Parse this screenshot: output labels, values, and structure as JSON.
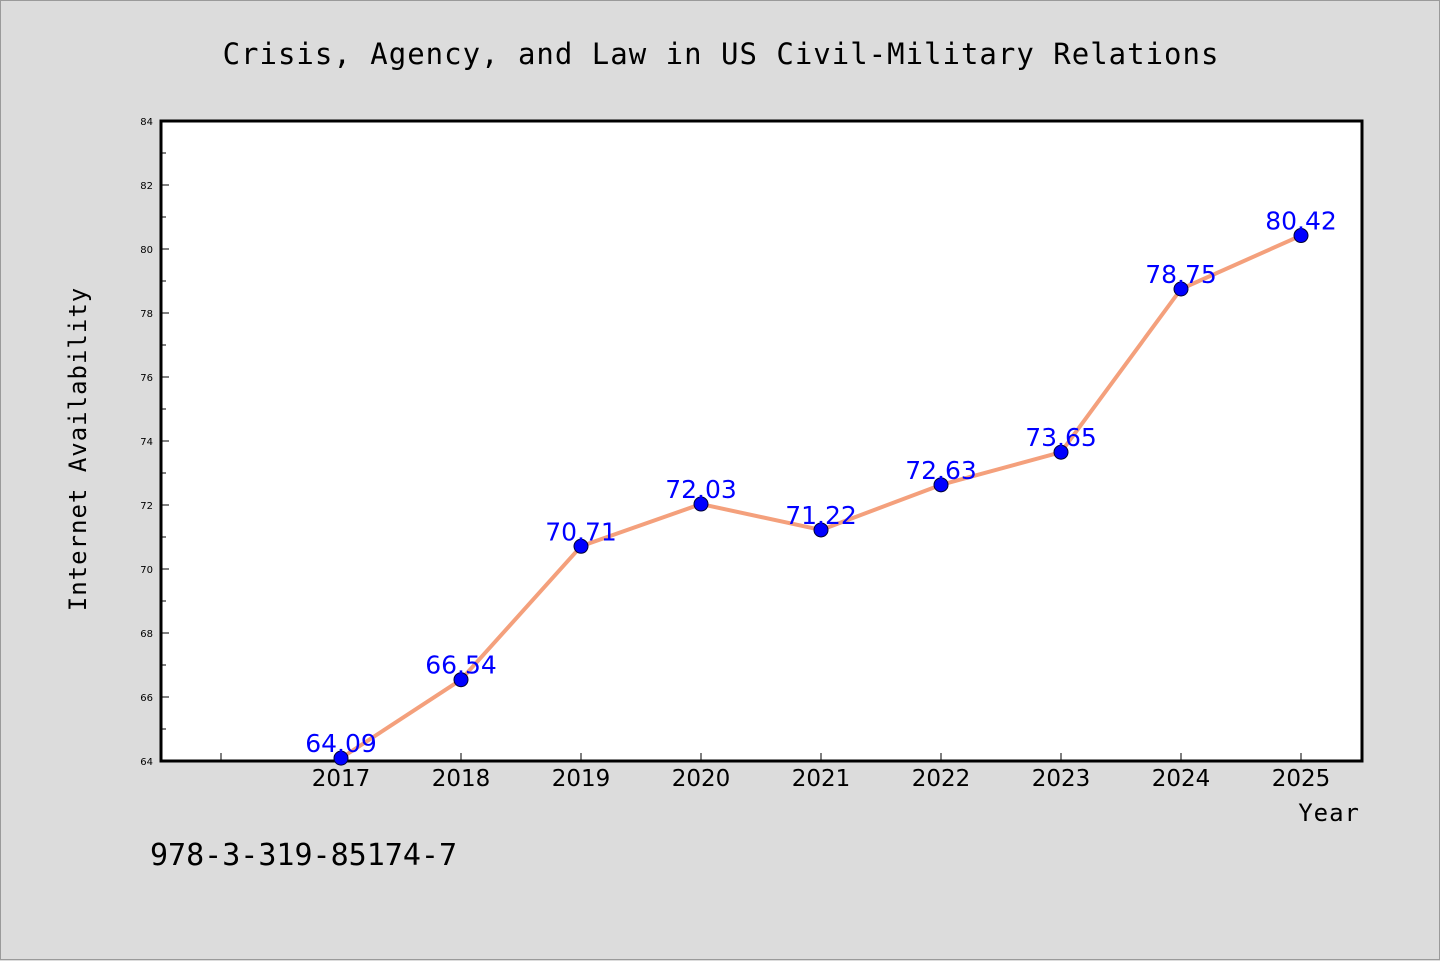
{
  "colors": {
    "background": "#dcdcdc",
    "plot_background": "#ffffff",
    "line": "#f4a07c",
    "marker": "#0000ff",
    "data_label": "#0000ff"
  },
  "footer": {
    "isbn": "978-3-319-85174-7"
  },
  "chart_data": {
    "type": "line",
    "title": "Crisis, Agency, and Law in US Civil-Military Relations",
    "xlabel": "Year",
    "ylabel": "Internet Availability",
    "categories": [
      "2017",
      "2018",
      "2019",
      "2020",
      "2021",
      "2022",
      "2023",
      "2024",
      "2025"
    ],
    "series": [
      {
        "values": [
          64.09,
          66.54,
          70.71,
          72.03,
          71.22,
          72.63,
          73.65,
          78.75,
          80.42
        ],
        "labels": [
          "64.09",
          "66.54",
          "70.71",
          "72.03",
          "71.22",
          "72.63",
          "73.65",
          "78.75",
          "80.42"
        ]
      }
    ],
    "ylim": [
      64,
      84
    ],
    "yticks": [
      "64",
      "66",
      "68",
      "70",
      "72",
      "74",
      "76",
      "78",
      "80",
      "82",
      "84"
    ],
    "grid": false,
    "legend": "none"
  }
}
